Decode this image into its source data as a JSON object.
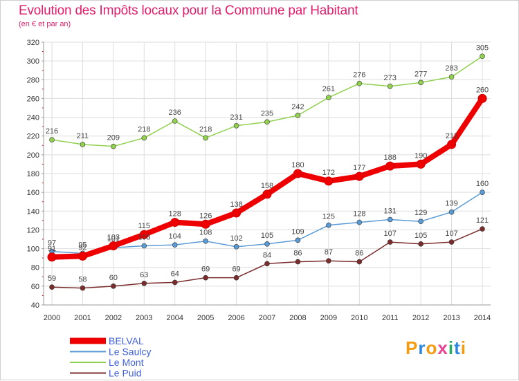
{
  "header": {
    "title": "Evolution des Impôts locaux pour la Commune par Habitant",
    "subtitle": "(en € et par an)"
  },
  "brand": {
    "text": "Proxiti",
    "colors": [
      "#f39c12",
      "#2e86de",
      "#f39c12",
      "#e84393",
      "#27ae60",
      "#2e86de",
      "#f39c12"
    ]
  },
  "chart_data": {
    "type": "line",
    "x": [
      "2000",
      "2001",
      "2002",
      "2003",
      "2004",
      "2005",
      "2006",
      "2007",
      "2008",
      "2009",
      "2010",
      "2011",
      "2012",
      "2013",
      "2014"
    ],
    "ylim": [
      40,
      320
    ],
    "yticks": [
      40,
      60,
      80,
      100,
      120,
      140,
      160,
      180,
      200,
      220,
      240,
      260,
      280,
      300,
      320
    ],
    "grid": true,
    "legend_position": "bottom-left",
    "series": [
      {
        "name": "BELVAL",
        "color": "#ee0000",
        "values": [
          91,
          92,
          103,
          115,
          128,
          126,
          138,
          158,
          180,
          172,
          177,
          188,
          190,
          211,
          260
        ]
      },
      {
        "name": "Le Saulcy",
        "color": "#5b9bd5",
        "values": [
          97,
          95,
          101,
          103,
          104,
          108,
          102,
          105,
          109,
          125,
          128,
          131,
          129,
          139,
          160
        ]
      },
      {
        "name": "Le Mont",
        "color": "#92d050",
        "values": [
          216,
          211,
          209,
          218,
          236,
          218,
          231,
          235,
          242,
          261,
          276,
          273,
          277,
          283,
          305
        ]
      },
      {
        "name": "Le Puid",
        "color": "#7b2c2c",
        "values": [
          59,
          58,
          60,
          63,
          64,
          69,
          69,
          84,
          86,
          87,
          86,
          107,
          105,
          107,
          121
        ]
      }
    ]
  }
}
